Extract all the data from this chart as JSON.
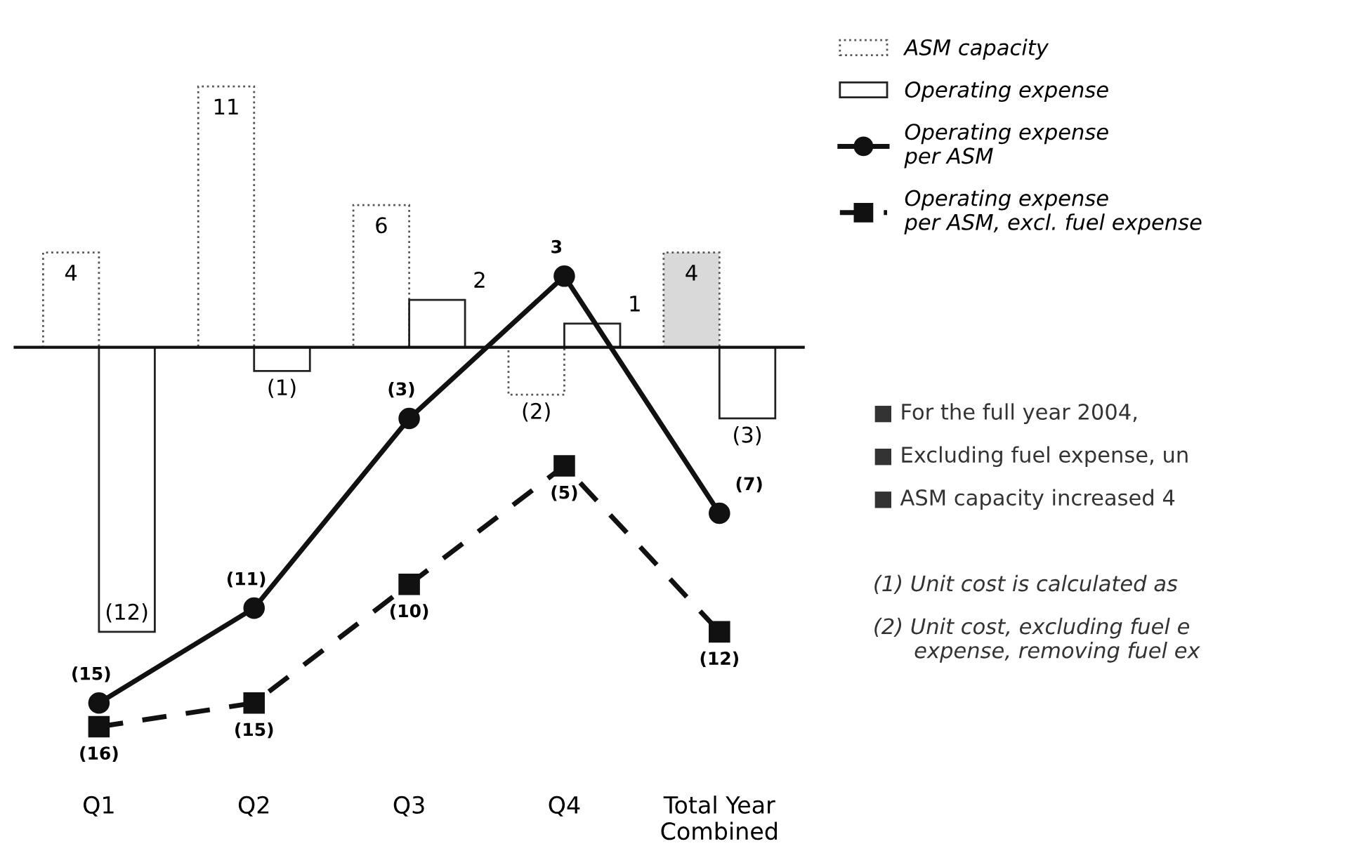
{
  "chart_data": {
    "type": "bar",
    "categories": [
      "Q1",
      "Q2",
      "Q3",
      "Q4",
      "Total Year\nCombined"
    ],
    "series": [
      {
        "name": "ASM capacity",
        "color": "#555555",
        "colors": [
          "#ffffff",
          "#ffffff",
          "#ffffff",
          "#ffffff",
          "#d9d9d9"
        ],
        "line_style": "dotted",
        "values": [
          4,
          11,
          6,
          -2,
          4
        ],
        "value_labels": [
          "4",
          "11",
          "6",
          "(2)",
          "4"
        ]
      },
      {
        "name": "Operating expense",
        "color": "#222222",
        "colors": [
          "#ffffff",
          "#ffffff",
          "#ffffff",
          "#ffffff",
          "#ffffff"
        ],
        "line_style": "solid",
        "values": [
          -12,
          -1,
          2,
          1,
          -3
        ],
        "value_labels": [
          "(12)",
          "(1)",
          "2",
          "1",
          "(3)"
        ]
      },
      {
        "name": "Operating expense\nper ASM",
        "type": "line",
        "color": "#111111",
        "marker": "circle",
        "line_style": "solid",
        "values": [
          -15,
          -11,
          -3,
          3,
          -7
        ],
        "value_labels": [
          "(15)",
          "(11)",
          "(3)",
          "3",
          "(7)"
        ]
      },
      {
        "name": "Operating expense\nper ASM, excl. fuel expense",
        "type": "line",
        "color": "#111111",
        "marker": "square",
        "line_style": "dashed",
        "values": [
          -16,
          -15,
          -10,
          -5,
          -12
        ],
        "value_labels": [
          "(16)",
          "(15)",
          "(10)",
          "(5)",
          "(12)"
        ]
      }
    ],
    "legend": "top right",
    "grid": false,
    "annotations": [
      "■ For the full year 2004,",
      "■ Excluding fuel expense, un",
      "■ ASM capacity increased 4",
      "(1) Unit cost is calculated as",
      "(2) Unit cost, excluding fuel e\n      expense, removing fuel ex"
    ]
  }
}
